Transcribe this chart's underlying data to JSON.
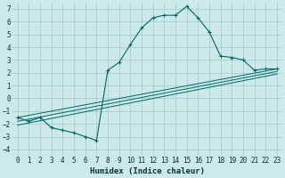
{
  "title": "",
  "xlabel": "Humidex (Indice chaleur)",
  "ylabel": "",
  "background_color": "#cce8e8",
  "grid_color": "#99cccc",
  "line_color": "#006666",
  "ylim": [
    -4.5,
    7.5
  ],
  "xlim": [
    -0.5,
    23.5
  ],
  "yticks": [
    -4,
    -3,
    -2,
    -1,
    0,
    1,
    2,
    3,
    4,
    5,
    6,
    7
  ],
  "xticks": [
    0,
    1,
    2,
    3,
    4,
    5,
    6,
    7,
    8,
    9,
    10,
    11,
    12,
    13,
    14,
    15,
    16,
    17,
    18,
    19,
    20,
    21,
    22,
    23
  ],
  "main_line": {
    "x": [
      0,
      1,
      2,
      3,
      4,
      5,
      6,
      7,
      8,
      9,
      10,
      11,
      12,
      13,
      14,
      15,
      16,
      17,
      18,
      19,
      20,
      21,
      22,
      23
    ],
    "y": [
      -1.5,
      -1.8,
      -1.5,
      -2.3,
      -2.5,
      -2.7,
      -3.0,
      -3.3,
      2.2,
      2.8,
      4.2,
      5.5,
      6.3,
      6.5,
      6.5,
      7.2,
      6.3,
      5.2,
      3.3,
      3.2,
      3.0,
      2.2,
      2.3,
      2.3
    ]
  },
  "trend_lines": [
    {
      "x": [
        0,
        23
      ],
      "y": [
        -1.5,
        2.3
      ]
    },
    {
      "x": [
        0,
        23
      ],
      "y": [
        -1.8,
        2.1
      ]
    },
    {
      "x": [
        0,
        23
      ],
      "y": [
        -2.1,
        1.9
      ]
    }
  ]
}
